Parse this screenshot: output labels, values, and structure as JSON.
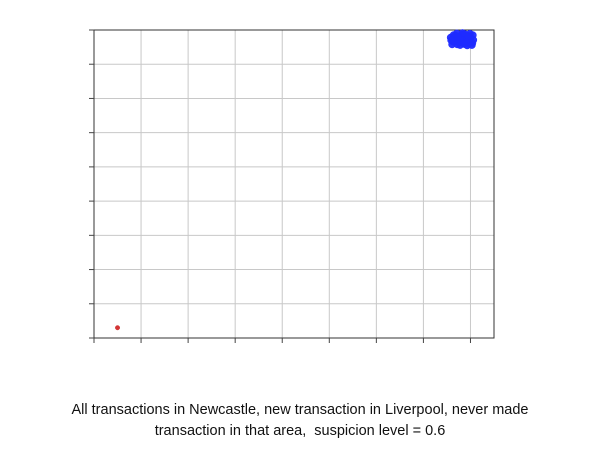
{
  "chart_data": {
    "type": "scatter",
    "title": "",
    "xlabel": "",
    "ylabel": "",
    "grid": true,
    "tick_labels_shown": false,
    "xlim": [
      0,
      8.5
    ],
    "ylim": [
      0,
      9
    ],
    "series": [
      {
        "color": "#1f2bff",
        "points": [
          [
            7.58,
            8.78
          ],
          [
            7.63,
            8.66
          ],
          [
            7.68,
            8.84
          ],
          [
            7.72,
            8.58
          ],
          [
            7.76,
            8.73
          ],
          [
            7.81,
            8.86
          ],
          [
            7.85,
            8.62
          ],
          [
            7.89,
            8.77
          ],
          [
            7.93,
            8.55
          ],
          [
            7.97,
            8.82
          ],
          [
            8.01,
            8.67
          ],
          [
            8.05,
            8.85
          ],
          [
            7.61,
            8.58
          ],
          [
            7.66,
            8.72
          ],
          [
            7.71,
            8.9
          ],
          [
            7.75,
            8.64
          ],
          [
            7.8,
            8.8
          ],
          [
            7.84,
            8.69
          ],
          [
            7.88,
            8.88
          ],
          [
            7.92,
            8.74
          ],
          [
            7.96,
            8.6
          ],
          [
            8.0,
            8.78
          ],
          [
            8.04,
            8.62
          ],
          [
            7.64,
            8.85
          ],
          [
            7.7,
            8.68
          ],
          [
            7.78,
            8.56
          ],
          [
            7.83,
            8.91
          ],
          [
            7.91,
            8.64
          ],
          [
            7.99,
            8.89
          ],
          [
            8.06,
            8.71
          ],
          [
            7.59,
            8.7
          ],
          [
            7.74,
            8.79
          ],
          [
            7.87,
            8.59
          ],
          [
            7.95,
            8.83
          ],
          [
            8.03,
            8.56
          ]
        ]
      },
      {
        "color": "#d12a2a",
        "points": [
          [
            0.5,
            0.3
          ]
        ]
      }
    ]
  },
  "caption": {
    "line1": "All transactions in Newcastle, new transaction in Liverpool, never made",
    "line2": "transaction in that area,  suspicion level = 0.6"
  }
}
